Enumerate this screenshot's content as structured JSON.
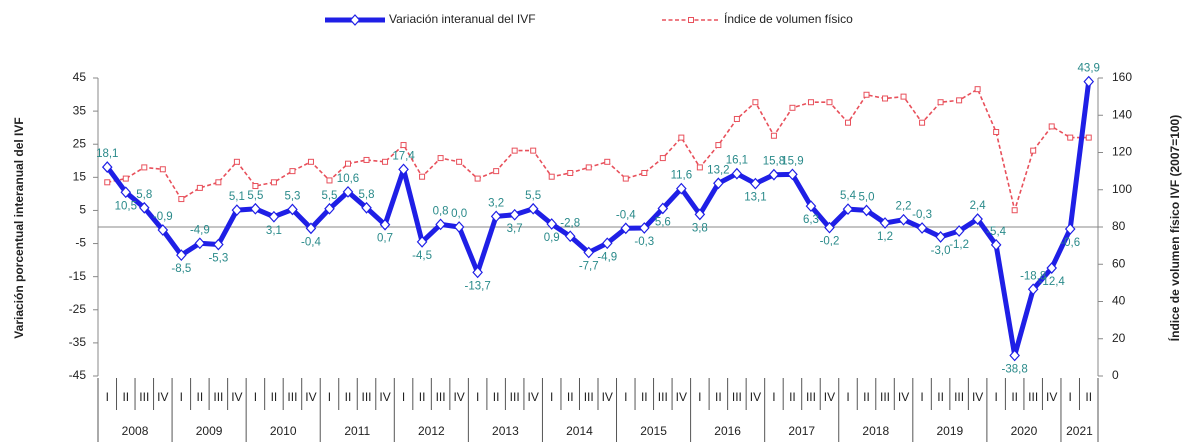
{
  "chart_data": {
    "type": "line",
    "categories": [
      "I",
      "II",
      "III",
      "IV",
      "I",
      "II",
      "III",
      "IV",
      "I",
      "II",
      "III",
      "IV",
      "I",
      "II",
      "III",
      "IV",
      "I",
      "II",
      "III",
      "IV",
      "I",
      "II",
      "III",
      "IV",
      "I",
      "II",
      "III",
      "IV",
      "I",
      "II",
      "III",
      "IV",
      "I",
      "II",
      "III",
      "IV",
      "I",
      "II",
      "III",
      "IV",
      "I",
      "II",
      "III",
      "IV",
      "I",
      "II",
      "III",
      "IV",
      "I",
      "II",
      "III",
      "IV",
      "I",
      "II"
    ],
    "years": [
      "2008",
      "2009",
      "2010",
      "2011",
      "2012",
      "2013",
      "2014",
      "2015",
      "2016",
      "2017",
      "2018",
      "2019",
      "2020",
      "2021"
    ],
    "series": [
      {
        "name": "Variación interanual del IVF",
        "color": "#1f1fe6",
        "axis": "y",
        "values": [
          18.1,
          10.5,
          5.8,
          -0.9,
          -8.5,
          -4.9,
          -5.3,
          5.1,
          5.5,
          3.1,
          5.3,
          -0.4,
          5.5,
          10.6,
          5.8,
          0.7,
          17.4,
          -4.5,
          0.8,
          0.0,
          -13.7,
          3.2,
          3.7,
          5.5,
          0.9,
          -2.8,
          -7.7,
          -4.9,
          -0.4,
          -0.3,
          5.6,
          11.6,
          3.8,
          13.2,
          16.1,
          13.1,
          15.8,
          15.9,
          6.3,
          -0.2,
          5.4,
          5.0,
          1.2,
          2.2,
          -0.3,
          -3.0,
          -1.2,
          2.4,
          -5.4,
          -38.8,
          -18.8,
          -12.4,
          -0.6,
          43.9
        ],
        "value_labels": [
          "18,1",
          "10,5",
          "5,8",
          "-0,9",
          "-8,5",
          "-4,9",
          "-5,3",
          "5,1",
          "5,5",
          "3,1",
          "5,3",
          "-0,4",
          "5,5",
          "10,6",
          "5,8",
          "0,7",
          "17,4",
          "-4,5",
          "0,8",
          "0,0",
          "-13,7",
          "3,2",
          "3,7",
          "5,5",
          "0,9",
          "-2,8",
          "-7,7",
          "-4,9",
          "-0,4",
          "-0,3",
          "5,6",
          "11,6",
          "3,8",
          "13,2",
          "16,1",
          "13,1",
          "15,8",
          "15,9",
          "6,3",
          "-0,2",
          "5,4",
          "5,0",
          "1,2",
          "2,2",
          "-0,3",
          "-3,0",
          "-1,2",
          "2,4",
          "-5,4",
          "-38,8",
          "-18,8",
          "-12,4",
          "-0,6",
          "43,9"
        ]
      },
      {
        "name": "Índice de volumen físico",
        "color": "#e8505b",
        "axis": "y2",
        "values": [
          104,
          106,
          112,
          111,
          95,
          101,
          104,
          115,
          102,
          104,
          110,
          115,
          105,
          114,
          116,
          115,
          124,
          107,
          117,
          115,
          106,
          110,
          121,
          121,
          107,
          109,
          112,
          115,
          106,
          109,
          117,
          128,
          112,
          124,
          138,
          147,
          129,
          144,
          147,
          147,
          136,
          151,
          149,
          150,
          136,
          147,
          148,
          154,
          131,
          89,
          121,
          134,
          128,
          128
        ]
      }
    ],
    "ylabel": "Variación porcentual interanual del IVF",
    "y2label": "Índice de volumen físico IVF (2007=100)",
    "ylim": [
      -45,
      45
    ],
    "yticks": [
      -45,
      -35,
      -25,
      -15,
      -5,
      5,
      15,
      25,
      35,
      45
    ],
    "y2lim": [
      0,
      160
    ],
    "y2ticks": [
      0,
      20,
      40,
      60,
      80,
      100,
      120,
      140,
      160
    ],
    "legend": "top"
  }
}
